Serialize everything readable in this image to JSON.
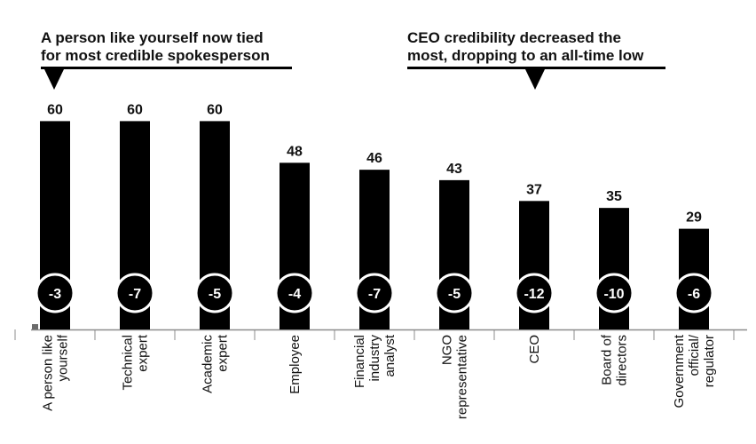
{
  "chart_data": {
    "type": "bar",
    "title": "",
    "xlabel": "",
    "ylabel": "",
    "ylim": [
      0,
      70
    ],
    "grid": false,
    "legend": "none",
    "categories": [
      "A person like yourself",
      "Technical expert",
      "Academic expert",
      "Employee",
      "Financial industry analyst",
      "NGO representative",
      "CEO",
      "Board of directors",
      "Government official/ regulator"
    ],
    "category_label_lines": [
      [
        "A person like",
        "yourself"
      ],
      [
        "Technical",
        "expert"
      ],
      [
        "Academic",
        "expert"
      ],
      [
        "Employee"
      ],
      [
        "Financial",
        "industry",
        "analyst"
      ],
      [
        "NGO",
        "representative"
      ],
      [
        "CEO"
      ],
      [
        "Board of",
        "directors"
      ],
      [
        "Government",
        "official/",
        "regulator"
      ]
    ],
    "values": [
      60,
      60,
      60,
      48,
      46,
      43,
      37,
      35,
      29
    ],
    "changes": [
      "-3",
      "-7",
      "-5",
      "-4",
      "-7",
      "-5",
      "-12",
      "-10",
      "-6"
    ],
    "colors": {
      "bar": "#000000",
      "badge_fill": "#000000",
      "badge_stroke": "#ffffff",
      "badge_text": "#ffffff",
      "axis": "#8c8c8c",
      "text": "#111111"
    },
    "annotations": [
      {
        "id": "left",
        "lines": [
          "A person like yourself now tied",
          "for most credible spokesperson"
        ]
      },
      {
        "id": "right",
        "lines": [
          "CEO credibility decreased the",
          "most, dropping to an all-time low"
        ]
      }
    ]
  }
}
